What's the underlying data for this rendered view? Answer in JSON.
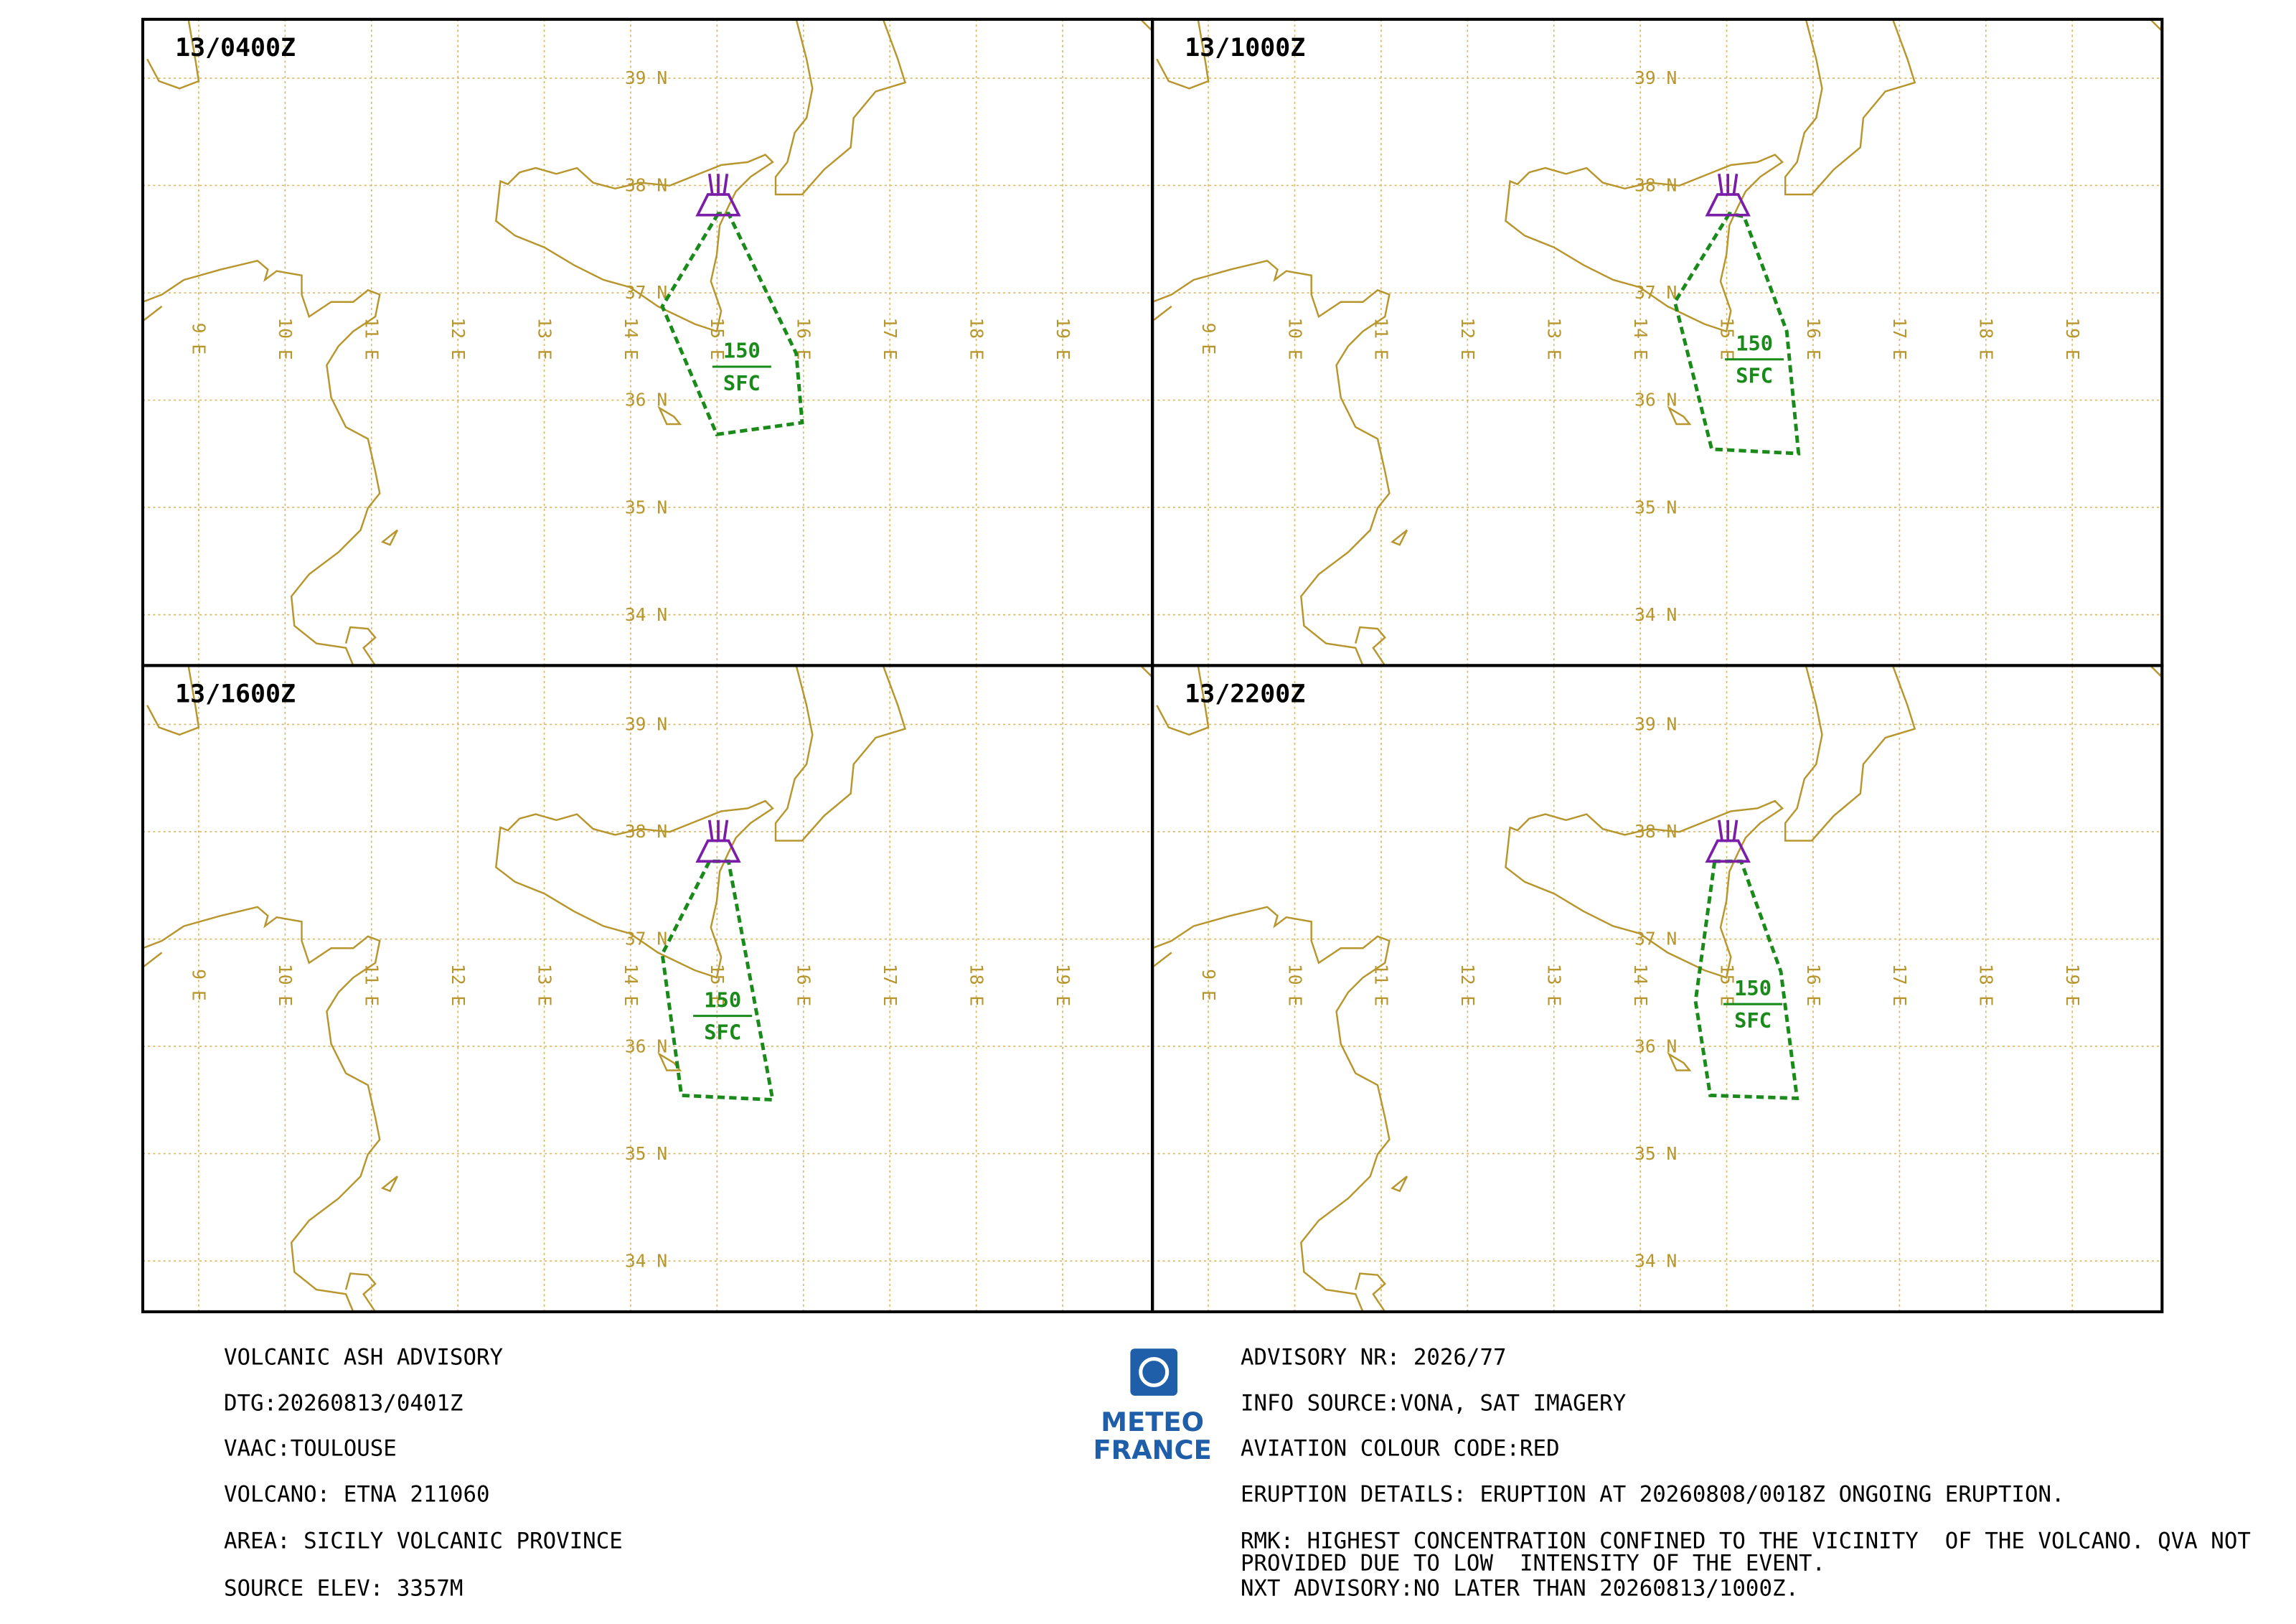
{
  "panels": [
    {
      "time": "13/0400Z",
      "top": "150",
      "base": "SFC"
    },
    {
      "time": "13/1000Z",
      "top": "150",
      "base": "SFC"
    },
    {
      "time": "13/1600Z",
      "top": "150",
      "base": "SFC"
    },
    {
      "time": "13/2200Z",
      "top": "150",
      "base": "SFC"
    }
  ],
  "lat_labels": [
    "39 N",
    "38 N",
    "37 N",
    "36 N",
    "35 N",
    "34 N"
  ],
  "lon_labels": [
    "9 E",
    "10 E",
    "11 E",
    "12 E",
    "13 E",
    "14 E",
    "15 E",
    "16 E",
    "17 E",
    "18 E",
    "19 E"
  ],
  "advisory_left": [
    "VOLCANIC ASH ADVISORY",
    "DTG:20260813/0401Z",
    "VAAC:TOULOUSE",
    "VOLCANO: ETNA 211060",
    "AREA: SICILY VOLCANIC PROVINCE",
    "SOURCE ELEV: 3357M"
  ],
  "advisory_right": [
    "ADVISORY NR: 2026/77",
    "INFO SOURCE:VONA, SAT IMAGERY",
    "AVIATION COLOUR CODE:RED",
    "ERUPTION DETAILS: ERUPTION AT 20260808/0018Z ONGOING ERUPTION.",
    "RMK: HIGHEST CONCENTRATION CONFINED TO THE VICINITY  OF THE VOLCANO. QVA NOT PROVIDED DUE TO LOW  INTENSITY OF THE EVENT.",
    "NXT ADVISORY:NO LATER THAN 20260813/1000Z."
  ],
  "logo": [
    "METEO",
    "FRANCE"
  ]
}
